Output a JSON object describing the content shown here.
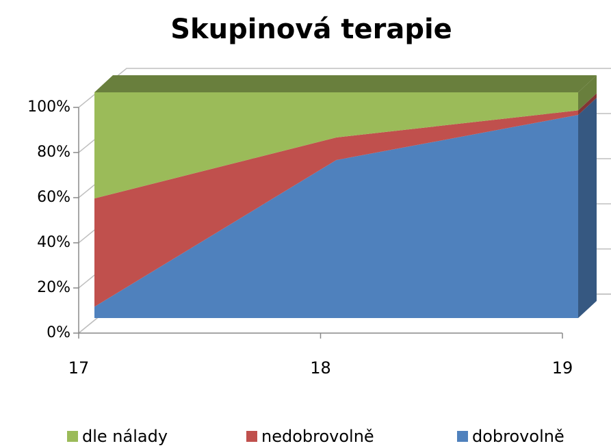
{
  "chart_data": {
    "type": "area",
    "title": "Skupinová terapie",
    "categories": [
      "17",
      "18",
      "19"
    ],
    "series": [
      {
        "name": "dobrovolně",
        "color": "#4f81bd",
        "values": [
          5,
          70,
          90
        ]
      },
      {
        "name": "nedobrovolně",
        "color": "#c0504d",
        "values": [
          48,
          10,
          2
        ]
      },
      {
        "name": "dle nálady",
        "color": "#9bbb59",
        "values": [
          47,
          20,
          8
        ]
      }
    ],
    "ylim": [
      0,
      100
    ],
    "yticks": [
      {
        "value": 0,
        "label": "0%"
      },
      {
        "value": 20,
        "label": "20%"
      },
      {
        "value": 40,
        "label": "40%"
      },
      {
        "value": 60,
        "label": "60%"
      },
      {
        "value": 80,
        "label": "80%"
      },
      {
        "value": 100,
        "label": "100%"
      }
    ],
    "grid": true,
    "legend": "bottom"
  }
}
